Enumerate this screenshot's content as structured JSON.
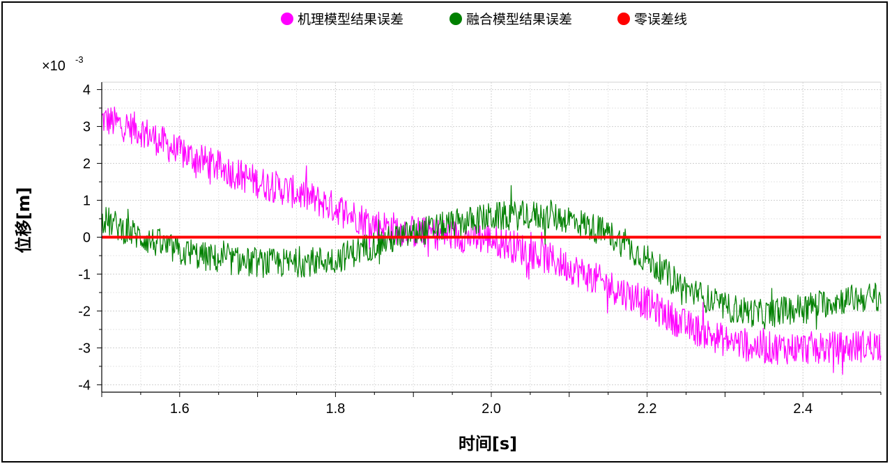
{
  "chart_data": {
    "type": "line",
    "xlabel": "时间[s]",
    "ylabel": "位移[m]",
    "y_multiplier_base": "×10",
    "y_multiplier_exp": "-3",
    "xlim": [
      1.5,
      2.5
    ],
    "ylim": [
      -4.2,
      4.2
    ],
    "x_ticks": [
      1.6,
      1.8,
      2.0,
      2.2,
      2.4
    ],
    "x_tick_labels": [
      "1.6",
      "1.8",
      "2.0",
      "2.2",
      "2.4"
    ],
    "y_ticks": [
      4,
      3,
      2,
      1,
      0,
      -1,
      -2,
      -3,
      -4
    ],
    "y_tick_labels": [
      "4",
      "3",
      "2",
      "1",
      "0",
      "-1",
      "-2",
      "-3",
      "-4"
    ],
    "grid": true,
    "legend_position": "top-center",
    "series": [
      {
        "name": "机理模型结果误差",
        "color": "#ff00ff",
        "trend_x": [
          1.5,
          1.55,
          1.6,
          1.65,
          1.7,
          1.75,
          1.8,
          1.85,
          1.9,
          1.95,
          2.0,
          2.05,
          2.1,
          2.15,
          2.2,
          2.25,
          2.3,
          2.35,
          2.4,
          2.45,
          2.5
        ],
        "trend_y": [
          3.2,
          2.9,
          2.3,
          1.9,
          1.5,
          1.2,
          0.8,
          0.35,
          0.15,
          0.05,
          -0.05,
          -0.4,
          -0.8,
          -1.3,
          -1.8,
          -2.4,
          -2.8,
          -3.0,
          -3.0,
          -3.0,
          -2.9
        ],
        "noise_amplitude": 0.45
      },
      {
        "name": "融合模型结果误差",
        "color": "#008000",
        "trend_x": [
          1.5,
          1.55,
          1.6,
          1.65,
          1.7,
          1.75,
          1.8,
          1.85,
          1.9,
          1.95,
          2.0,
          2.05,
          2.1,
          2.15,
          2.2,
          2.25,
          2.3,
          2.35,
          2.4,
          2.45,
          2.5
        ],
        "trend_y": [
          0.5,
          0.0,
          -0.4,
          -0.6,
          -0.7,
          -0.7,
          -0.6,
          -0.2,
          0.1,
          0.35,
          0.55,
          0.6,
          0.5,
          0.1,
          -0.6,
          -1.4,
          -1.9,
          -2.1,
          -1.9,
          -1.7,
          -1.6
        ],
        "noise_amplitude": 0.4
      },
      {
        "name": "零误差线",
        "color": "#ff0000",
        "x": [
          1.5,
          2.5
        ],
        "y": [
          0,
          0
        ]
      }
    ]
  }
}
